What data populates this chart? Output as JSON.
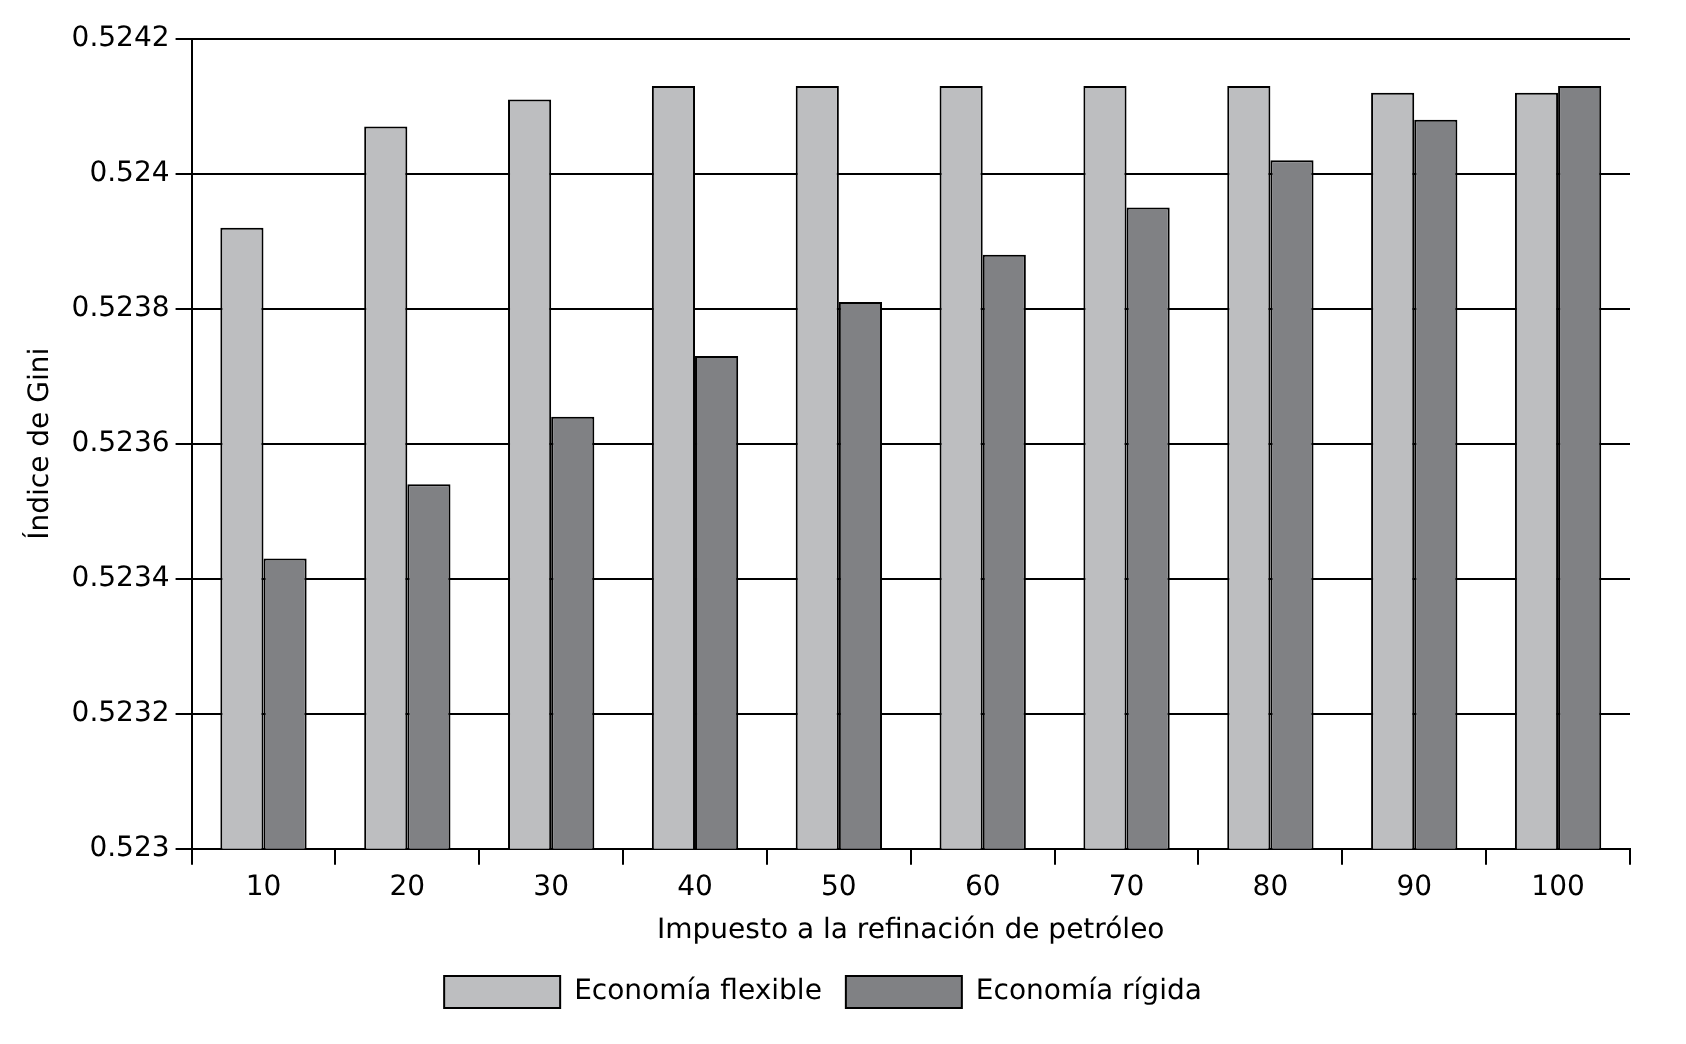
{
  "chart_data": {
    "type": "bar",
    "xlabel": "Impuesto a la refinación de petróleo",
    "ylabel": "Índice de Gini",
    "categories": [
      "10",
      "20",
      "30",
      "40",
      "50",
      "60",
      "70",
      "80",
      "90",
      "100"
    ],
    "series": [
      {
        "name": "Economía flexible",
        "color": "#bdbec0",
        "values": [
          0.52392,
          0.52407,
          0.52411,
          0.52413,
          0.52413,
          0.52413,
          0.52413,
          0.52413,
          0.52412,
          0.52412
        ]
      },
      {
        "name": "Economía rígida",
        "color": "#808184",
        "values": [
          0.52343,
          0.52354,
          0.52364,
          0.52373,
          0.52381,
          0.52388,
          0.52395,
          0.52402,
          0.52408,
          0.52413
        ]
      }
    ],
    "ylim": [
      0.523,
      0.5242
    ],
    "yticks": [
      0.523,
      0.5232,
      0.5234,
      0.5236,
      0.5238,
      0.524,
      0.5242
    ],
    "grid": "y",
    "legend": "bottom"
  }
}
